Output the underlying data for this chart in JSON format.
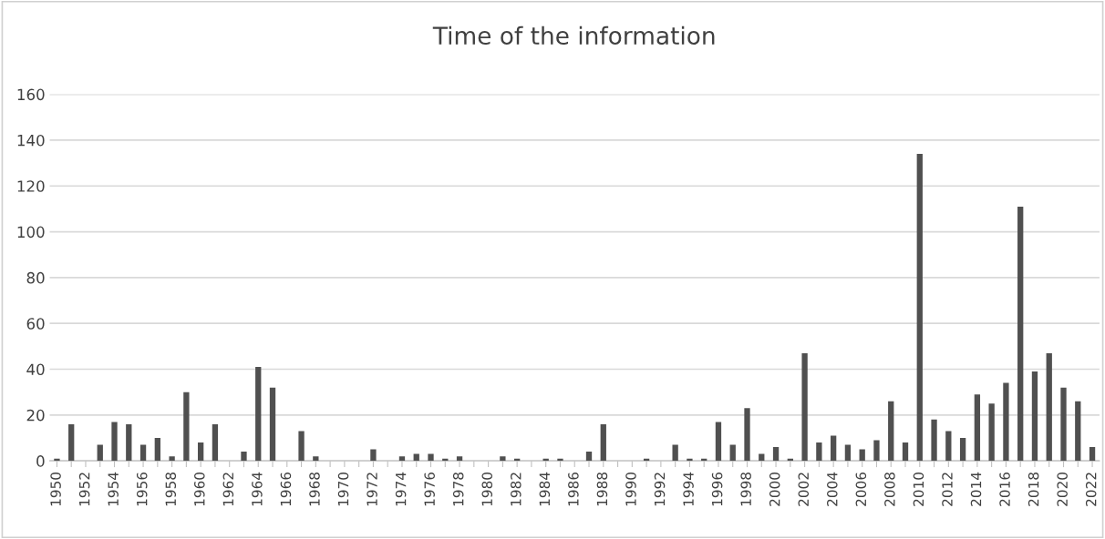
{
  "chart_data": {
    "type": "bar",
    "title": "Time of the information",
    "categories": [
      "1950",
      null,
      "1952",
      null,
      "1954",
      null,
      "1956",
      null,
      "1958",
      null,
      "1960",
      null,
      "1962",
      null,
      "1964",
      null,
      "1966",
      null,
      "1968",
      null,
      "1970",
      null,
      "1972",
      null,
      "1974",
      null,
      "1976",
      null,
      "1978",
      null,
      "1980",
      null,
      "1982",
      null,
      "1984",
      null,
      "1986",
      null,
      "1988",
      null,
      "1990",
      null,
      "1992",
      null,
      "1994",
      null,
      "1996",
      null,
      "1998",
      null,
      "2000",
      null,
      "2002",
      null,
      "2004",
      null,
      "2006",
      null,
      "2008",
      null,
      "2010",
      null,
      "2012",
      null,
      "2014",
      null,
      "2016",
      null,
      "2018",
      null,
      "2020",
      null,
      "2022"
    ],
    "values": [
      1,
      16,
      0,
      7,
      17,
      16,
      7,
      10,
      2,
      30,
      8,
      16,
      0,
      4,
      41,
      32,
      0,
      13,
      2,
      0,
      0,
      0,
      5,
      0,
      2,
      3,
      3,
      1,
      2,
      0,
      0,
      2,
      1,
      0,
      1,
      1,
      0,
      4,
      16,
      0,
      0,
      1,
      0,
      7,
      1,
      1,
      17,
      7,
      23,
      3,
      6,
      1,
      47,
      8,
      11,
      7,
      5,
      9,
      26,
      8,
      134,
      18,
      13,
      10,
      29,
      25,
      34,
      111,
      39,
      47,
      32,
      26,
      6
    ],
    "color": "#505050",
    "ylim": [
      0,
      160
    ],
    "yticks": [
      0,
      20,
      40,
      60,
      80,
      100,
      120,
      140,
      160
    ],
    "grid": "y",
    "legend": false
  }
}
